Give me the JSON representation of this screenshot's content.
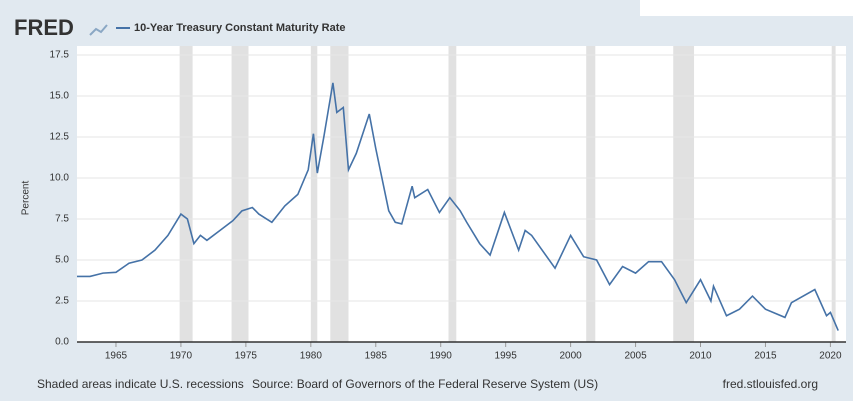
{
  "brand": "FRED",
  "footer": {
    "note": "Shaded areas indicate U.S. recessions",
    "source": "Source: Board of Governors of the Federal Reserve System (US)",
    "site": "fred.stlouisfed.org"
  },
  "chart_data": {
    "type": "line",
    "ylabel": "Percent",
    "series": [
      {
        "name": "10-Year Treasury Constant Maturity Rate",
        "color": "#4572a7",
        "x": [
          1962,
          1963,
          1964,
          1965,
          1966,
          1967,
          1968,
          1969,
          1970,
          1970.5,
          1971,
          1971.5,
          1972,
          1973,
          1974,
          1974.7,
          1975.5,
          1976,
          1977,
          1978,
          1979,
          1979.8,
          1980.2,
          1980.5,
          1981,
          1981.7,
          1982,
          1982.5,
          1982.9,
          1983.5,
          1984.5,
          1985,
          1986,
          1986.5,
          1987,
          1987.8,
          1988,
          1989,
          1989.9,
          1990.7,
          1991.5,
          1992,
          1993,
          1993.8,
          1994.9,
          1996,
          1996.5,
          1997,
          1998.8,
          2000,
          2001,
          2002,
          2003,
          2004,
          2005,
          2006,
          2007,
          2008,
          2008.9,
          2010,
          2010.8,
          2011,
          2012,
          2013,
          2014,
          2015,
          2016.5,
          2017,
          2018.8,
          2019.7,
          2020,
          2020.6
        ],
        "values": [
          4.0,
          4.0,
          4.2,
          4.25,
          4.8,
          5.0,
          5.6,
          6.5,
          7.8,
          7.5,
          6.0,
          6.5,
          6.2,
          6.8,
          7.4,
          8.0,
          8.2,
          7.8,
          7.3,
          8.3,
          9.0,
          10.5,
          12.7,
          10.3,
          12.5,
          15.8,
          14.0,
          14.3,
          10.5,
          11.5,
          13.9,
          11.8,
          8.0,
          7.3,
          7.2,
          9.5,
          8.8,
          9.3,
          7.9,
          8.8,
          8.0,
          7.3,
          6.0,
          5.3,
          7.9,
          5.6,
          6.8,
          6.5,
          4.5,
          6.5,
          5.2,
          5.0,
          3.5,
          4.6,
          4.2,
          4.9,
          4.9,
          3.8,
          2.4,
          3.8,
          2.5,
          3.4,
          1.6,
          2.0,
          2.8,
          2.0,
          1.5,
          2.4,
          3.2,
          1.6,
          1.8,
          0.7
        ]
      }
    ],
    "recessions": [
      [
        1969.9,
        1970.9
      ],
      [
        1973.9,
        1975.2
      ],
      [
        1980.0,
        1980.5
      ],
      [
        1981.5,
        1982.9
      ],
      [
        1990.6,
        1991.2
      ],
      [
        2001.2,
        2001.9
      ],
      [
        2007.9,
        2009.5
      ],
      [
        2020.1,
        2020.4
      ]
    ],
    "recession_color": "#e1e1e1",
    "xlim": [
      1962,
      2021.2
    ],
    "xticks": [
      1965,
      1970,
      1975,
      1980,
      1985,
      1990,
      1995,
      2000,
      2005,
      2010,
      2015,
      2020
    ],
    "ylim": [
      0,
      17.5
    ],
    "yticks": [
      {
        "value": 0,
        "label": "0.0"
      },
      2.5,
      {
        "value": 5,
        "label": "5.0"
      },
      7.5,
      {
        "value": 10,
        "label": "10.0"
      },
      12.5,
      {
        "value": 15,
        "label": "15.0"
      },
      17.5
    ],
    "grid": true
  }
}
